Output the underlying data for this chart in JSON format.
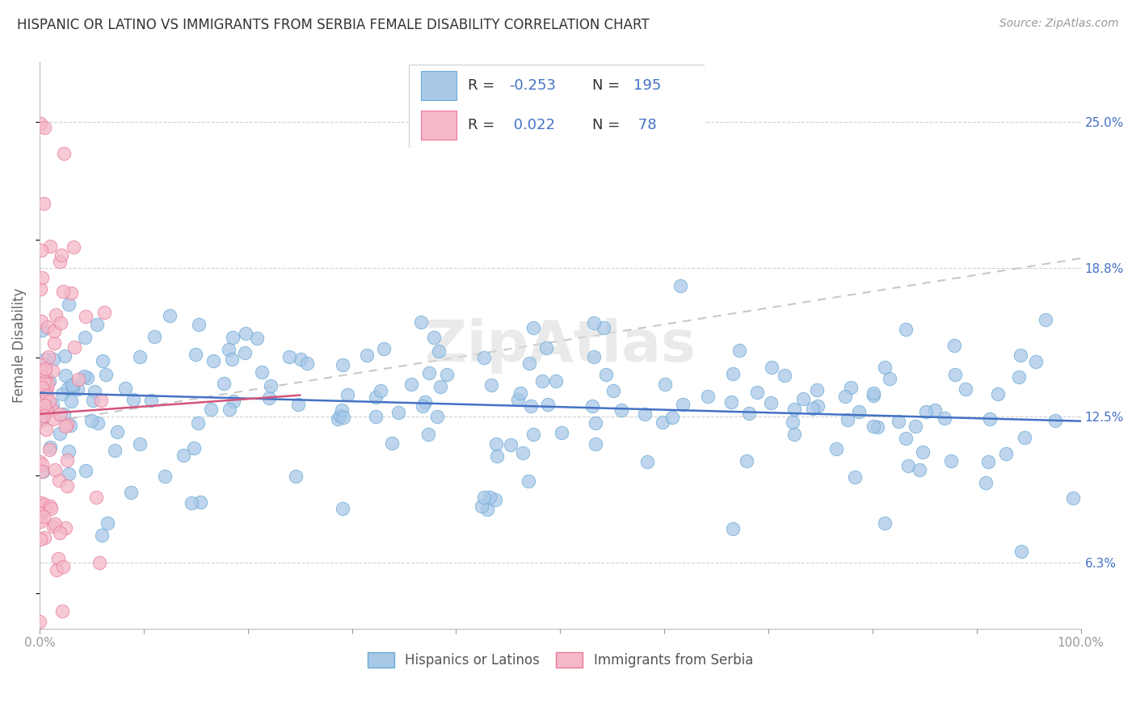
{
  "title": "HISPANIC OR LATINO VS IMMIGRANTS FROM SERBIA FEMALE DISABILITY CORRELATION CHART",
  "source": "Source: ZipAtlas.com",
  "ylabel": "Female Disability",
  "xlim": [
    0,
    100
  ],
  "ylim": [
    3.5,
    27.5
  ],
  "yticks": [
    6.3,
    12.5,
    18.8,
    25.0
  ],
  "ytick_labels": [
    "6.3%",
    "12.5%",
    "18.8%",
    "25.0%"
  ],
  "xticks": [
    0,
    10,
    20,
    30,
    40,
    50,
    60,
    70,
    80,
    90,
    100
  ],
  "xtick_labels": [
    "0.0%",
    "",
    "",
    "",
    "",
    "",
    "",
    "",
    "",
    "",
    "100.0%"
  ],
  "blue_scatter_color": "#a8c8e8",
  "blue_edge_color": "#6aaad4",
  "pink_scatter_color": "#f4b8c8",
  "pink_edge_color": "#e87898",
  "blue_line_color": "#4472c4",
  "pink_line_color": "#d4547a",
  "gray_dash_color": "#c8c8c8",
  "grid_color": "#d0d0d0",
  "background_color": "#ffffff",
  "watermark": "ZipAtlas",
  "blue_R": -0.253,
  "blue_N": 195,
  "pink_R": 0.022,
  "pink_N": 78,
  "blue_trend_start_y": 13.5,
  "blue_trend_end_y": 12.3,
  "pink_trend_start_y": 12.6,
  "pink_trend_end_x": 25,
  "pink_trend_end_y": 13.4,
  "gray_trend_start_y": 12.2,
  "gray_trend_end_y": 19.2,
  "legend_entry1": "Hispanics or Latinos",
  "legend_entry2": "Immigrants from Serbia",
  "seed": 7
}
